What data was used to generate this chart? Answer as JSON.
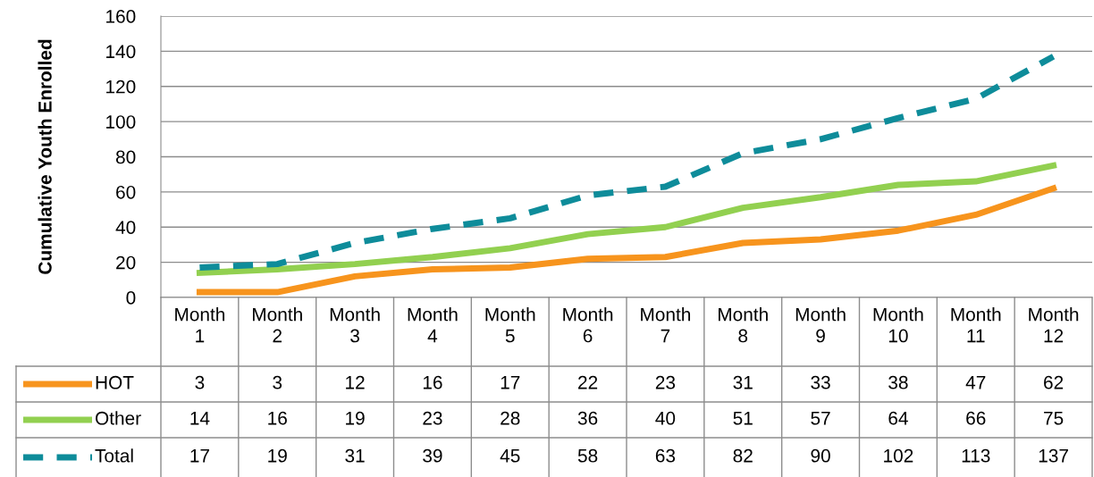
{
  "chart_data": {
    "type": "line",
    "ylabel": "Cumulative Youth Enrolled",
    "categories": [
      "Month 1",
      "Month 2",
      "Month 3",
      "Month 4",
      "Month 5",
      "Month 6",
      "Month 7",
      "Month 8",
      "Month 9",
      "Month 10",
      "Month 11",
      "Month 12"
    ],
    "series": [
      {
        "name": "HOT",
        "color": "#f7941d",
        "line_style": "solid",
        "values": [
          3,
          3,
          12,
          16,
          17,
          22,
          23,
          31,
          33,
          38,
          47,
          62
        ]
      },
      {
        "name": "Other",
        "color": "#92d050",
        "line_style": "solid",
        "values": [
          14,
          16,
          19,
          23,
          28,
          36,
          40,
          51,
          57,
          64,
          66,
          75
        ]
      },
      {
        "name": "Total",
        "color": "#0e8c9a",
        "line_style": "dashed",
        "values": [
          17,
          19,
          31,
          39,
          45,
          58,
          63,
          82,
          90,
          102,
          113,
          137
        ]
      }
    ],
    "ylim": [
      0,
      160
    ],
    "yticks": [
      0,
      20,
      40,
      60,
      80,
      100,
      120,
      140,
      160
    ],
    "grid": "y",
    "marker": "none",
    "data_labels": true,
    "legend": "bottom left"
  }
}
